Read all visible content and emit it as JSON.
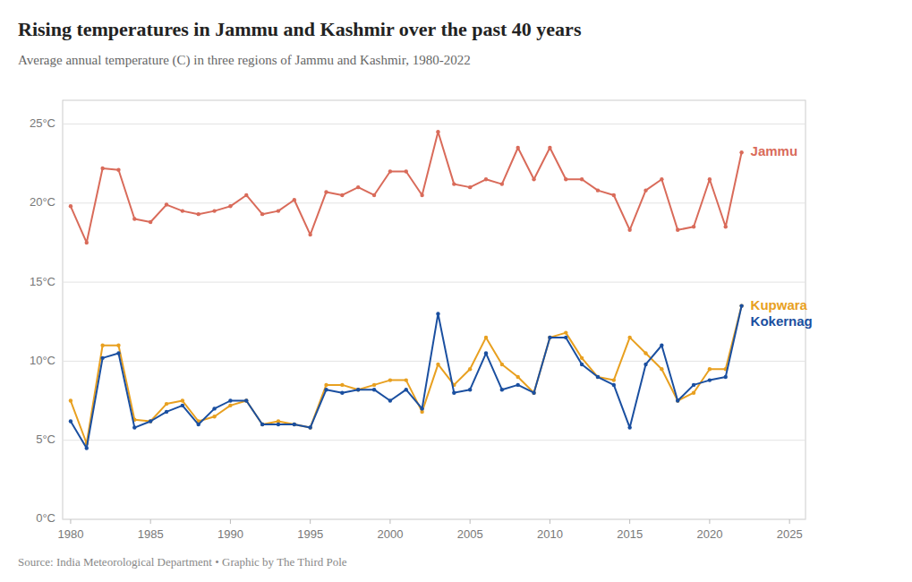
{
  "chart_data": {
    "type": "line",
    "title": "Rising temperatures in Jammu and Kashmir over the past 40 years",
    "subtitle": "Average annual temperature (C) in three regions of Jammu and Kashmir, 1980-2022",
    "annotations": [
      "Source: India Meteorological Department • Graphic by The Third Pole"
    ],
    "x": [
      1980,
      1981,
      1982,
      1983,
      1984,
      1985,
      1986,
      1987,
      1988,
      1989,
      1990,
      1991,
      1992,
      1993,
      1994,
      1995,
      1996,
      1997,
      1998,
      1999,
      2000,
      2001,
      2002,
      2003,
      2004,
      2005,
      2006,
      2007,
      2008,
      2009,
      2010,
      2011,
      2012,
      2013,
      2014,
      2015,
      2016,
      2017,
      2018,
      2019,
      2020,
      2021,
      2022
    ],
    "series": [
      {
        "name": "Jammu",
        "color": "#d96b5a",
        "values": [
          19.8,
          17.5,
          22.2,
          22.1,
          19.0,
          18.8,
          19.9,
          19.5,
          19.3,
          19.5,
          19.8,
          20.5,
          19.3,
          19.5,
          20.2,
          18.0,
          20.7,
          20.5,
          21.0,
          20.5,
          22.0,
          22.0,
          20.5,
          24.5,
          21.2,
          21.0,
          21.5,
          21.2,
          23.5,
          21.5,
          23.5,
          21.5,
          21.5,
          20.8,
          20.5,
          18.3,
          20.8,
          21.5,
          18.3,
          18.5,
          21.5,
          18.5,
          23.2
        ]
      },
      {
        "name": "Kupwara",
        "color": "#e8a020",
        "values": [
          7.5,
          4.8,
          11.0,
          11.0,
          6.3,
          6.2,
          7.3,
          7.5,
          6.2,
          6.5,
          7.2,
          7.5,
          6.0,
          6.2,
          6.0,
          5.8,
          8.5,
          8.5,
          8.2,
          8.5,
          8.8,
          8.8,
          6.8,
          9.8,
          8.5,
          9.5,
          11.5,
          9.8,
          9.0,
          8.0,
          11.5,
          11.8,
          10.2,
          9.0,
          8.8,
          11.5,
          10.5,
          9.5,
          7.5,
          8.0,
          9.5,
          9.5,
          13.5
        ]
      },
      {
        "name": "Kokernag",
        "color": "#1a4fa0",
        "values": [
          6.2,
          4.5,
          10.2,
          10.5,
          5.8,
          6.2,
          6.8,
          7.2,
          6.0,
          7.0,
          7.5,
          7.5,
          6.0,
          6.0,
          6.0,
          5.8,
          8.2,
          8.0,
          8.2,
          8.2,
          7.5,
          8.2,
          7.0,
          13.0,
          8.0,
          8.2,
          10.5,
          8.2,
          8.5,
          8.0,
          11.5,
          11.5,
          9.8,
          9.0,
          8.5,
          5.8,
          9.8,
          11.0,
          7.5,
          8.5,
          8.8,
          9.0,
          13.5
        ]
      }
    ],
    "xlim": [
      1979.5,
      2026
    ],
    "xticks": [
      1980,
      1985,
      1990,
      1995,
      2000,
      2005,
      2010,
      2015,
      2020,
      2025
    ],
    "ylim": [
      0,
      26.5
    ],
    "yticks": [
      {
        "value": 0,
        "label": "0°C"
      },
      {
        "value": 5,
        "label": "5°C"
      },
      {
        "value": 10,
        "label": "10°C"
      },
      {
        "value": 15,
        "label": "15°C"
      },
      {
        "value": 20,
        "label": "20°C"
      },
      {
        "value": 25,
        "label": "25°C"
      }
    ],
    "grid": true,
    "marker": "circle"
  }
}
